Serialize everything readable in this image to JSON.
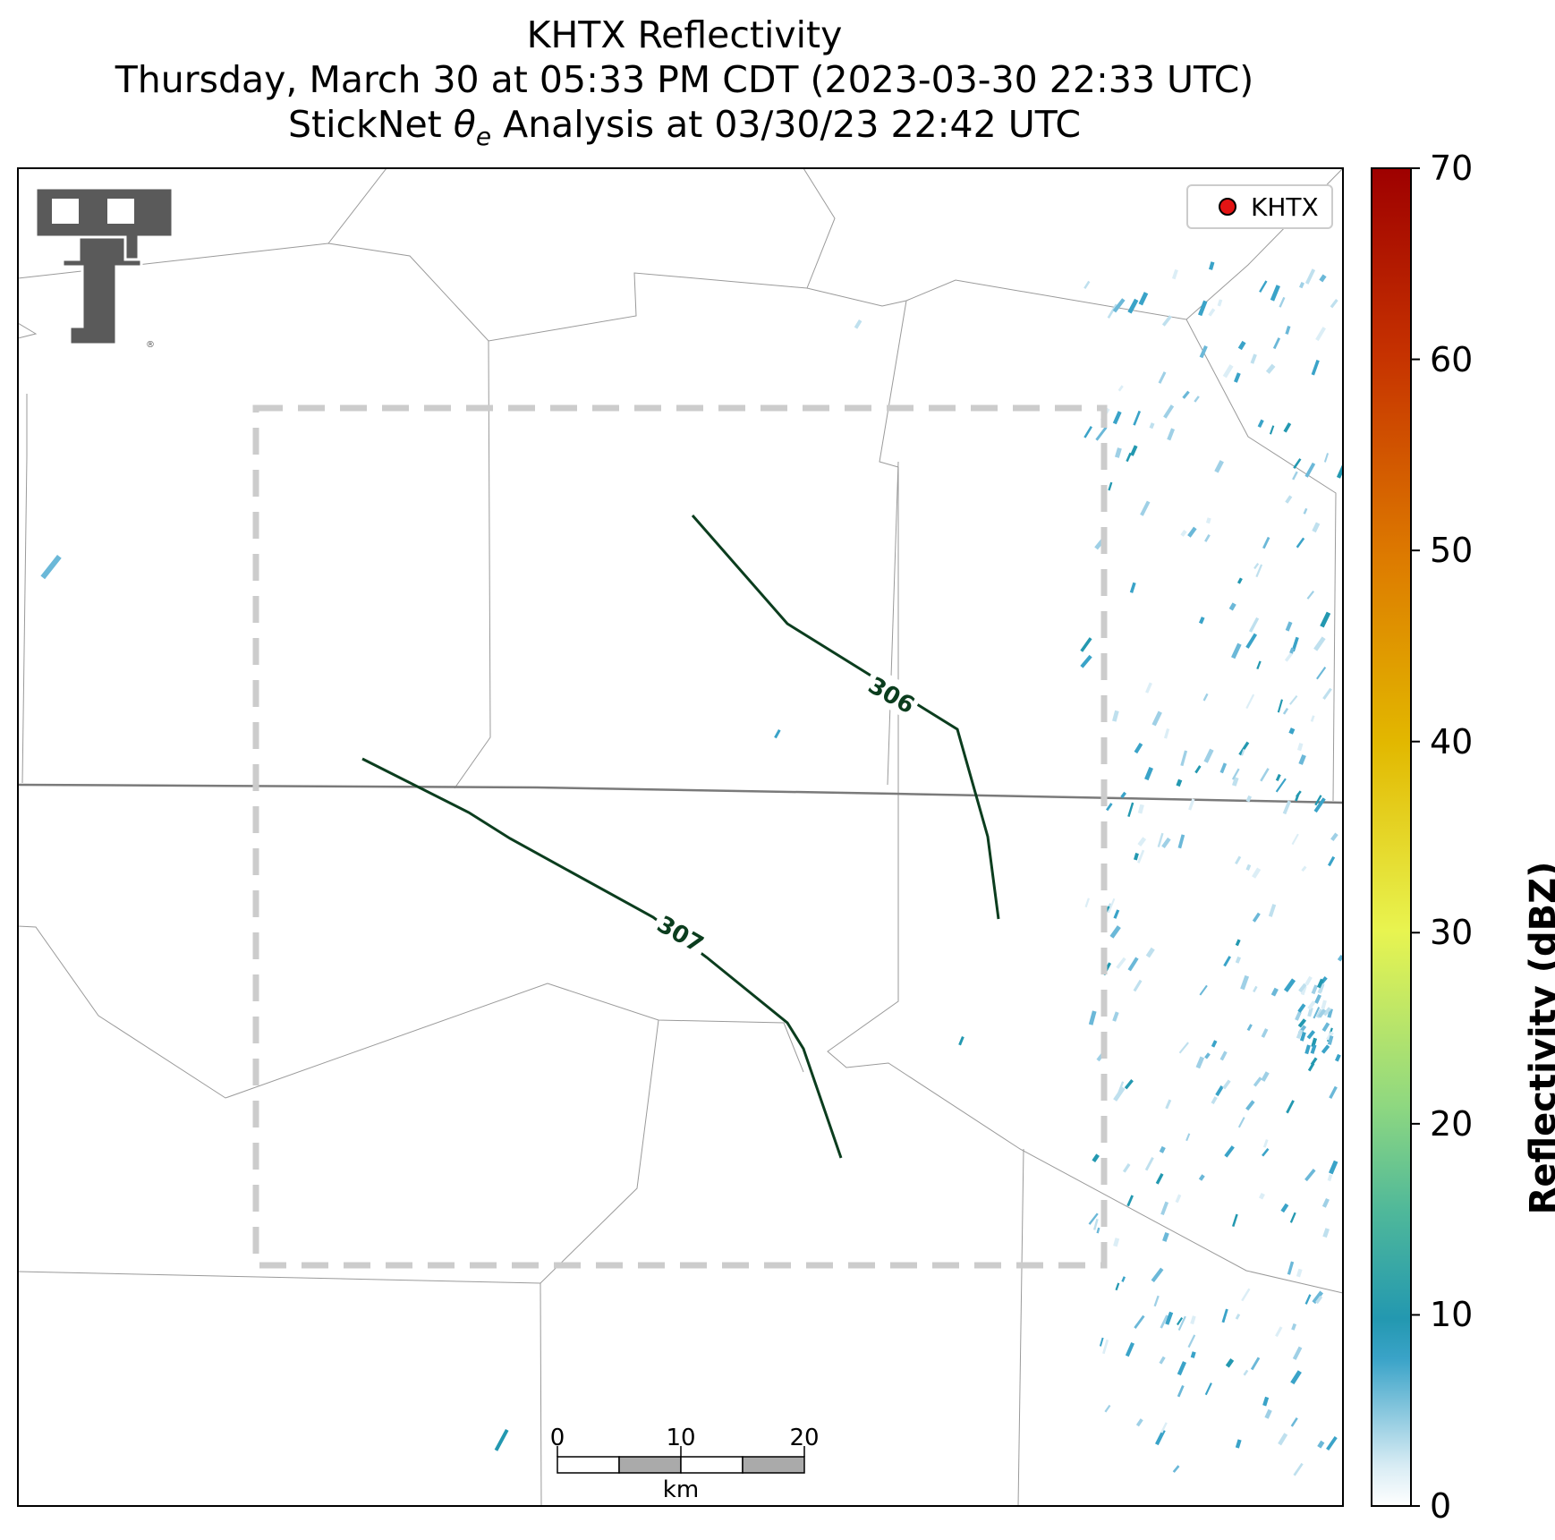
{
  "title": {
    "line1": "KHTX Reflectivity",
    "line2": "Thursday, March 30 at 05:33 PM CDT (2023-03-30 22:33 UTC)",
    "line3_prefix": "StickNet ",
    "line3_theta": "θ",
    "line3_sub": "e",
    "line3_suffix": " Analysis at 03/30/23 22:42 UTC"
  },
  "legend": {
    "label": "KHTX",
    "marker_color": "#e31414"
  },
  "logo": {
    "name": "Texas Tech Double-T logo"
  },
  "contours": [
    {
      "label": "306",
      "color": "#0b3d1e"
    },
    {
      "label": "307",
      "color": "#0b3d1e"
    }
  ],
  "scale_bar": {
    "ticks": [
      "0",
      "10",
      "20"
    ],
    "unit": "km"
  },
  "colorbar": {
    "label": "Reflectivity (dBZ)",
    "ticks": [
      "0",
      "10",
      "20",
      "30",
      "40",
      "50",
      "60",
      "70"
    ],
    "range": [
      0,
      70
    ],
    "colors": [
      "#ffffff",
      "#3aa3c8",
      "#2a9fa0",
      "#74c98a",
      "#e5f25a",
      "#e6bd00",
      "#e07a00",
      "#c83000",
      "#9e0000"
    ]
  },
  "analysis_box_style": "dashed light gray"
}
